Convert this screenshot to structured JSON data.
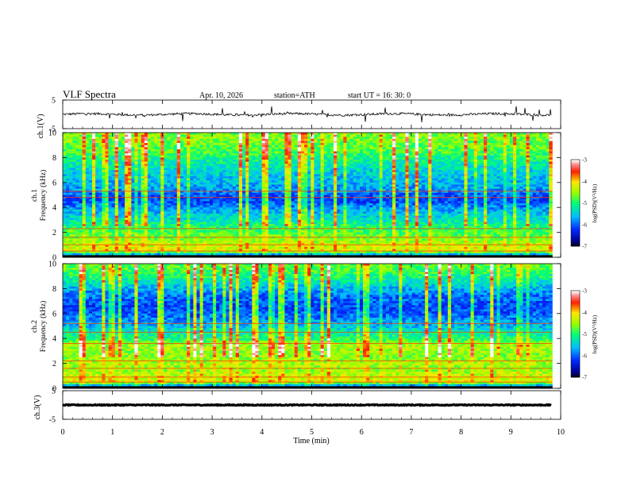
{
  "header": {
    "title": "VLF  Spectra",
    "date": "Apr. 10, 2026",
    "station": "station=ATH",
    "start": "start  UT  =    16: 30: 0"
  },
  "chart_data": [
    {
      "type": "line",
      "panel": "ch1-waveform",
      "ylabel": "ch.1(V)",
      "ylim": [
        -5,
        5
      ],
      "yticks": [
        "5",
        "-5"
      ],
      "xlim": [
        0,
        10
      ],
      "description_values": {
        "baseline_V": 0,
        "noise_amplitude_V": 0.8,
        "spike_amplitude_V": 2.5
      },
      "color": "#000000"
    },
    {
      "type": "heatmap",
      "panel": "ch1-spectrogram",
      "ylabel_line1": "ch.1",
      "ylabel_line2": "Frequency  (kHz)",
      "ylim": [
        0,
        10
      ],
      "yticks": [
        "0",
        "2",
        "4",
        "6",
        "8",
        "10"
      ],
      "xlim": [
        0,
        9.83
      ],
      "colorbar": {
        "label": "log(PSD)(V²/Hz)",
        "min": -7,
        "max": -3,
        "ticks": [
          "-3",
          "-4",
          "-5",
          "-6",
          "-7"
        ]
      },
      "profile_freq_kHz": [
        0,
        0.5,
        1,
        1.5,
        2,
        2.5,
        3,
        3.5,
        4,
        4.5,
        5,
        5.5,
        6,
        6.5,
        7,
        7.5,
        8,
        8.5,
        9,
        9.5,
        10
      ],
      "profile_log_psd": [
        -7.0,
        -4.2,
        -4.3,
        -4.6,
        -4.8,
        -5.0,
        -5.3,
        -5.5,
        -5.8,
        -6.1,
        -6.0,
        -5.7,
        -5.6,
        -5.5,
        -5.4,
        -5.2,
        -5.0,
        -4.8,
        -4.7,
        -4.6,
        -4.6
      ],
      "lines_kHz": [
        0.5,
        1.0,
        1.6,
        2.3,
        4.8,
        5.3
      ]
    },
    {
      "type": "heatmap",
      "panel": "ch2-spectrogram",
      "ylabel_line1": "ch.2",
      "ylabel_line2": "Frequency  (kHz)",
      "ylim": [
        0,
        10
      ],
      "yticks": [
        "0",
        "2",
        "4",
        "6",
        "8",
        "10"
      ],
      "xlim": [
        0,
        9.83
      ],
      "colorbar": {
        "label": "log(PSD)(V²/Hz)",
        "min": -7,
        "max": -3,
        "ticks": [
          "-3",
          "-4",
          "-5",
          "-6",
          "-7"
        ]
      },
      "profile_freq_kHz": [
        0,
        0.5,
        1,
        1.5,
        2,
        2.5,
        3,
        3.5,
        4,
        4.5,
        5,
        5.5,
        6,
        6.5,
        7,
        7.5,
        8,
        8.5,
        9,
        9.5,
        10
      ],
      "profile_log_psd": [
        -7.0,
        -4.2,
        -4.3,
        -4.5,
        -4.4,
        -4.6,
        -4.5,
        -4.4,
        -5.0,
        -5.2,
        -5.6,
        -5.8,
        -6.0,
        -6.1,
        -6.0,
        -5.9,
        -5.6,
        -5.3,
        -5.0,
        -4.8,
        -4.7
      ],
      "lines_kHz": [
        0.5,
        0.9,
        1.6,
        2.2,
        3.6,
        4.5,
        5.2
      ]
    },
    {
      "type": "line",
      "panel": "ch3-waveform",
      "ylabel": "ch.3(V)",
      "ylim": [
        -5,
        5
      ],
      "yticks": [
        "5",
        "-5"
      ],
      "xlim": [
        0,
        10
      ],
      "description_values": {
        "baseline_V": 0,
        "noise_amplitude_V": 0.3
      },
      "color": "#000000",
      "xlabel": "Time  (min)",
      "xticks": [
        "0",
        "1",
        "2",
        "3",
        "4",
        "5",
        "6",
        "7",
        "8",
        "9",
        "10"
      ]
    }
  ]
}
